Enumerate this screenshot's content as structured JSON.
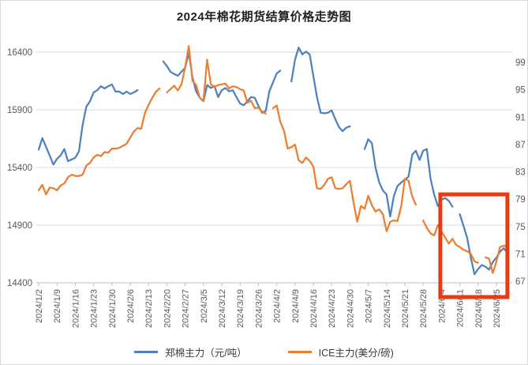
{
  "chart_data": {
    "type": "line",
    "title": "2024年棉花期货结算价格走势图",
    "grid": "horizontal",
    "legend_position": "bottom",
    "x_tick_every": 5,
    "x": [
      "2024/1/2",
      "2024/1/3",
      "2024/1/4",
      "2024/1/5",
      "2024/1/8",
      "2024/1/9",
      "2024/1/10",
      "2024/1/11",
      "2024/1/12",
      "2024/1/15",
      "2024/1/16",
      "2024/1/17",
      "2024/1/18",
      "2024/1/19",
      "2024/1/22",
      "2024/1/23",
      "2024/1/24",
      "2024/1/25",
      "2024/1/26",
      "2024/1/29",
      "2024/1/30",
      "2024/1/31",
      "2024/2/1",
      "2024/2/2",
      "2024/2/5",
      "2024/2/6",
      "2024/2/7",
      "2024/2/8",
      "2024/2/9",
      "2024/2/12",
      "2024/2/13",
      "2024/2/14",
      "2024/2/15",
      "2024/2/16",
      "2024/2/19",
      "2024/2/20",
      "2024/2/21",
      "2024/2/22",
      "2024/2/23",
      "2024/2/26",
      "2024/2/27",
      "2024/2/28",
      "2024/2/29",
      "2024/3/1",
      "2024/3/4",
      "2024/3/5",
      "2024/3/6",
      "2024/3/7",
      "2024/3/8",
      "2024/3/11",
      "2024/3/12",
      "2024/3/13",
      "2024/3/14",
      "2024/3/15",
      "2024/3/18",
      "2024/3/19",
      "2024/3/20",
      "2024/3/21",
      "2024/3/22",
      "2024/3/25",
      "2024/3/26",
      "2024/3/27",
      "2024/3/28",
      "2024/3/29",
      "2024/4/1",
      "2024/4/2",
      "2024/4/3",
      "2024/4/4",
      "2024/4/5",
      "2024/4/8",
      "2024/4/9",
      "2024/4/10",
      "2024/4/11",
      "2024/4/12",
      "2024/4/15",
      "2024/4/16",
      "2024/4/17",
      "2024/4/18",
      "2024/4/19",
      "2024/4/22",
      "2024/4/23",
      "2024/4/24",
      "2024/4/25",
      "2024/4/26",
      "2024/4/29",
      "2024/4/30",
      "2024/5/1",
      "2024/5/2",
      "2024/5/3",
      "2024/5/6",
      "2024/5/7",
      "2024/5/8",
      "2024/5/9",
      "2024/5/10",
      "2024/5/13",
      "2024/5/14",
      "2024/5/15",
      "2024/5/16",
      "2024/5/17",
      "2024/5/20",
      "2024/5/21",
      "2024/5/22",
      "2024/5/23",
      "2024/5/24",
      "2024/5/27",
      "2024/5/28",
      "2024/5/29",
      "2024/5/30",
      "2024/5/31",
      "2024/6/3",
      "2024/6/4",
      "2024/6/5",
      "2024/6/6",
      "2024/6/7",
      "2024/6/10",
      "2024/6/11",
      "2024/6/12",
      "2024/6/13",
      "2024/6/14",
      "2024/6/17",
      "2024/6/18",
      "2024/6/19",
      "2024/6/20",
      "2024/6/21",
      "2024/6/24",
      "2024/6/25",
      "2024/6/26",
      "2024/6/27",
      "2024/6/28"
    ],
    "series": [
      {
        "name": "郑棉主力（元/吨）",
        "axis": "left",
        "color": "#4e81bd",
        "values": [
          15555,
          15655,
          15580,
          15505,
          15425,
          15475,
          15505,
          15560,
          15455,
          15470,
          15485,
          15540,
          15770,
          15925,
          15975,
          16050,
          16070,
          16105,
          16085,
          16105,
          16120,
          16058,
          16058,
          16037,
          16058,
          16037,
          16051,
          16071,
          null,
          null,
          null,
          null,
          null,
          null,
          16320,
          16280,
          16230,
          16210,
          16195,
          16230,
          16265,
          16395,
          16180,
          16060,
          16005,
          15975,
          16115,
          16090,
          16105,
          16010,
          16070,
          16090,
          16060,
          16070,
          16010,
          15955,
          15940,
          15975,
          16010,
          16005,
          15935,
          15875,
          15890,
          16060,
          16140,
          16215,
          16240,
          null,
          null,
          16145,
          16335,
          16440,
          16380,
          16405,
          16380,
          16195,
          16010,
          15875,
          15870,
          15875,
          15895,
          15820,
          15750,
          15715,
          15745,
          15757,
          null,
          null,
          null,
          15560,
          15645,
          15610,
          15395,
          15270,
          15200,
          15165,
          14975,
          15155,
          15240,
          15270,
          15295,
          15320,
          15510,
          15545,
          15465,
          15545,
          15560,
          15305,
          15165,
          15065,
          15120,
          15135,
          15110,
          15060,
          null,
          14995,
          14895,
          14790,
          14620,
          14475,
          14520,
          14555,
          14540,
          14515,
          14580,
          14620,
          14670,
          14700,
          14660
        ]
      },
      {
        "name": "ICE主力(美分/磅)",
        "axis": "right",
        "color": "#ed7d31",
        "values": [
          80.3,
          81.1,
          79.7,
          80.7,
          80.6,
          80.3,
          81.0,
          81.3,
          82.2,
          82.6,
          82.4,
          82.4,
          82.6,
          83.9,
          84.3,
          85.1,
          85.5,
          85.3,
          85.9,
          85.8,
          86.4,
          86.4,
          86.5,
          86.8,
          87.1,
          88.0,
          88.9,
          89.4,
          89.3,
          91.6,
          92.8,
          93.8,
          94.7,
          95.2,
          null,
          94.6,
          95.1,
          95.6,
          94.9,
          95.8,
          98.3,
          101.4,
          96.3,
          95.7,
          93.8,
          93.4,
          99.4,
          95.8,
          95.4,
          95.7,
          95.8,
          95.9,
          95.2,
          95.5,
          95.4,
          95.1,
          94.9,
          93.1,
          93.4,
          92.3,
          92.4,
          91.8,
          91.5,
          null,
          92.3,
          92.7,
          90.3,
          89.0,
          86.4,
          86.6,
          87.0,
          84.7,
          84.3,
          85.1,
          84.6,
          83.8,
          80.6,
          80.5,
          81.1,
          82.0,
          82.2,
          80.6,
          80.5,
          80.6,
          81.2,
          81.7,
          78.5,
          75.7,
          78.0,
          77.6,
          79.5,
          78.1,
          77.2,
          77.5,
          76.8,
          74.3,
          75.7,
          75.9,
          75.8,
          78.0,
          82.0,
          81.7,
          79.4,
          78.2,
          null,
          75.9,
          74.8,
          74.0,
          73.7,
          75.2,
          74.3,
          73.4,
          72.5,
          73.2,
          72.3,
          72.0,
          71.6,
          71.4,
          71.0,
          69.9,
          69.7,
          null,
          70.5,
          70.3,
          68.2,
          69.9,
          72.0,
          72.2,
          72.0
        ]
      }
    ],
    "left_axis": {
      "min": 14400,
      "max": 16400,
      "step": 500,
      "ticks": [
        14400,
        14900,
        15400,
        15900,
        16400
      ]
    },
    "right_axis": {
      "min": 67,
      "max": 99,
      "step": 4,
      "ticks": [
        67,
        71,
        75,
        79,
        83,
        87,
        91,
        95,
        99
      ]
    },
    "annotation": {
      "type": "highlight-box",
      "color": "#e83b13",
      "date_start": "2024/6/4",
      "date_end": "2024/6/28",
      "right_axis_top": 79.7,
      "covers_x_labels": true
    },
    "style": {
      "grid_color": "#d9d9d9",
      "axis_line_color": "#bfbfbf",
      "axis_text_color": "#595959",
      "line_width": 2.25
    }
  }
}
